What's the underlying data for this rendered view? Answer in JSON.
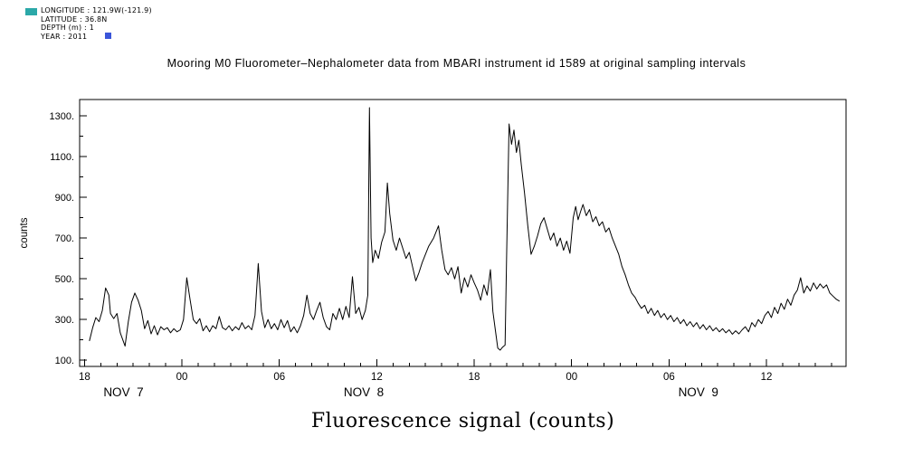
{
  "header": {
    "info_lines": [
      "LONGITUDE : 121.9W(-121.9)",
      "LATITUDE : 36.8N",
      "DEPTH (m) : 1",
      "YEAR : 2011"
    ],
    "markers": [
      {
        "color": "#2ba8a8"
      },
      {
        "color": "#3a55d9"
      }
    ],
    "title": "Mooring M0 Fluorometer–Nephalometer data from MBARI instrument id 1589 at original sampling intervals"
  },
  "chart_data": {
    "type": "line",
    "title": "Mooring M0 Fluorometer–Nephalometer data from MBARI instrument id 1589 at original sampling intervals",
    "xlabel": "Fluorescence signal (counts)",
    "ylabel": "counts",
    "line_color": "#000000",
    "grid": false,
    "legend": false,
    "x_encoding": "hours since 18:00 on NOV 7 2011",
    "xlim": [
      -0.3,
      46.9
    ],
    "ylim": [
      70,
      1380
    ],
    "y_axis": {
      "major": [
        {
          "v": 100,
          "label": "100."
        },
        {
          "v": 300,
          "label": "300."
        },
        {
          "v": 500,
          "label": "500."
        },
        {
          "v": 700,
          "label": "700."
        },
        {
          "v": 900,
          "label": "900."
        },
        {
          "v": 1100,
          "label": "1100."
        },
        {
          "v": 1300,
          "label": "1300."
        }
      ],
      "minor": [
        200,
        400,
        600,
        800,
        1000,
        1200
      ]
    },
    "x_axis": {
      "minor_step_hours": 1,
      "major": [
        {
          "t": 0,
          "label": "18"
        },
        {
          "t": 6,
          "label": "00"
        },
        {
          "t": 12,
          "label": "06"
        },
        {
          "t": 18,
          "label": "12"
        },
        {
          "t": 24,
          "label": "18"
        },
        {
          "t": 30,
          "label": "00"
        },
        {
          "t": 36,
          "label": "06"
        },
        {
          "t": 42,
          "label": "12"
        }
      ],
      "date_labels": [
        {
          "t": 2.4,
          "label": "NOV  7"
        },
        {
          "t": 17.2,
          "label": "NOV  8"
        },
        {
          "t": 37.8,
          "label": "NOV  9"
        }
      ]
    },
    "series": [
      {
        "name": "fluorescence",
        "points": [
          [
            0.3,
            195
          ],
          [
            0.5,
            260
          ],
          [
            0.7,
            310
          ],
          [
            0.9,
            290
          ],
          [
            1.1,
            345
          ],
          [
            1.3,
            455
          ],
          [
            1.5,
            420
          ],
          [
            1.6,
            330
          ],
          [
            1.8,
            305
          ],
          [
            2.0,
            330
          ],
          [
            2.2,
            235
          ],
          [
            2.5,
            170
          ],
          [
            2.7,
            290
          ],
          [
            2.9,
            385
          ],
          [
            3.1,
            430
          ],
          [
            3.3,
            395
          ],
          [
            3.5,
            345
          ],
          [
            3.7,
            255
          ],
          [
            3.9,
            295
          ],
          [
            4.1,
            230
          ],
          [
            4.3,
            270
          ],
          [
            4.5,
            225
          ],
          [
            4.7,
            265
          ],
          [
            4.9,
            250
          ],
          [
            5.1,
            260
          ],
          [
            5.3,
            235
          ],
          [
            5.5,
            255
          ],
          [
            5.7,
            240
          ],
          [
            5.9,
            250
          ],
          [
            6.1,
            300
          ],
          [
            6.3,
            505
          ],
          [
            6.5,
            400
          ],
          [
            6.7,
            300
          ],
          [
            6.9,
            280
          ],
          [
            7.1,
            305
          ],
          [
            7.3,
            245
          ],
          [
            7.5,
            270
          ],
          [
            7.7,
            240
          ],
          [
            7.9,
            270
          ],
          [
            8.1,
            255
          ],
          [
            8.3,
            315
          ],
          [
            8.5,
            260
          ],
          [
            8.7,
            250
          ],
          [
            8.9,
            270
          ],
          [
            9.1,
            245
          ],
          [
            9.3,
            265
          ],
          [
            9.5,
            250
          ],
          [
            9.7,
            285
          ],
          [
            9.9,
            255
          ],
          [
            10.1,
            270
          ],
          [
            10.3,
            250
          ],
          [
            10.5,
            320
          ],
          [
            10.7,
            575
          ],
          [
            10.9,
            340
          ],
          [
            11.1,
            260
          ],
          [
            11.3,
            300
          ],
          [
            11.5,
            255
          ],
          [
            11.7,
            280
          ],
          [
            11.9,
            250
          ],
          [
            12.1,
            300
          ],
          [
            12.3,
            260
          ],
          [
            12.5,
            295
          ],
          [
            12.7,
            240
          ],
          [
            12.9,
            265
          ],
          [
            13.1,
            235
          ],
          [
            13.3,
            270
          ],
          [
            13.5,
            320
          ],
          [
            13.7,
            420
          ],
          [
            13.9,
            330
          ],
          [
            14.1,
            300
          ],
          [
            14.3,
            345
          ],
          [
            14.5,
            385
          ],
          [
            14.7,
            310
          ],
          [
            14.9,
            265
          ],
          [
            15.1,
            250
          ],
          [
            15.3,
            330
          ],
          [
            15.5,
            300
          ],
          [
            15.7,
            355
          ],
          [
            15.9,
            300
          ],
          [
            16.1,
            365
          ],
          [
            16.3,
            310
          ],
          [
            16.5,
            510
          ],
          [
            16.7,
            330
          ],
          [
            16.9,
            360
          ],
          [
            17.1,
            300
          ],
          [
            17.3,
            345
          ],
          [
            17.45,
            420
          ],
          [
            17.55,
            1340
          ],
          [
            17.65,
            700
          ],
          [
            17.75,
            580
          ],
          [
            17.9,
            640
          ],
          [
            18.1,
            600
          ],
          [
            18.3,
            680
          ],
          [
            18.5,
            730
          ],
          [
            18.65,
            970
          ],
          [
            18.8,
            820
          ],
          [
            19.0,
            690
          ],
          [
            19.2,
            640
          ],
          [
            19.4,
            700
          ],
          [
            19.6,
            650
          ],
          [
            19.8,
            600
          ],
          [
            20.0,
            630
          ],
          [
            20.2,
            560
          ],
          [
            20.4,
            490
          ],
          [
            20.6,
            530
          ],
          [
            20.8,
            580
          ],
          [
            21.0,
            620
          ],
          [
            21.2,
            660
          ],
          [
            21.5,
            700
          ],
          [
            21.8,
            760
          ],
          [
            22.0,
            640
          ],
          [
            22.2,
            545
          ],
          [
            22.4,
            520
          ],
          [
            22.6,
            555
          ],
          [
            22.8,
            500
          ],
          [
            23.0,
            560
          ],
          [
            23.2,
            430
          ],
          [
            23.4,
            505
          ],
          [
            23.6,
            460
          ],
          [
            23.8,
            520
          ],
          [
            24.0,
            480
          ],
          [
            24.2,
            445
          ],
          [
            24.4,
            395
          ],
          [
            24.6,
            470
          ],
          [
            24.8,
            420
          ],
          [
            25.0,
            545
          ],
          [
            25.15,
            340
          ],
          [
            25.3,
            250
          ],
          [
            25.45,
            160
          ],
          [
            25.6,
            150
          ],
          [
            25.75,
            165
          ],
          [
            25.9,
            175
          ],
          [
            26.0,
            640
          ],
          [
            26.15,
            1260
          ],
          [
            26.3,
            1160
          ],
          [
            26.45,
            1230
          ],
          [
            26.6,
            1120
          ],
          [
            26.75,
            1180
          ],
          [
            26.9,
            1060
          ],
          [
            27.1,
            920
          ],
          [
            27.3,
            760
          ],
          [
            27.5,
            620
          ],
          [
            27.7,
            660
          ],
          [
            27.9,
            710
          ],
          [
            28.1,
            770
          ],
          [
            28.3,
            800
          ],
          [
            28.5,
            745
          ],
          [
            28.7,
            690
          ],
          [
            28.9,
            725
          ],
          [
            29.1,
            660
          ],
          [
            29.3,
            700
          ],
          [
            29.5,
            640
          ],
          [
            29.7,
            685
          ],
          [
            29.9,
            625
          ],
          [
            30.1,
            800
          ],
          [
            30.25,
            855
          ],
          [
            30.4,
            790
          ],
          [
            30.55,
            830
          ],
          [
            30.7,
            865
          ],
          [
            30.9,
            810
          ],
          [
            31.1,
            840
          ],
          [
            31.3,
            780
          ],
          [
            31.5,
            805
          ],
          [
            31.7,
            760
          ],
          [
            31.9,
            780
          ],
          [
            32.1,
            730
          ],
          [
            32.3,
            750
          ],
          [
            32.5,
            700
          ],
          [
            32.7,
            660
          ],
          [
            32.9,
            620
          ],
          [
            33.1,
            560
          ],
          [
            33.3,
            520
          ],
          [
            33.5,
            470
          ],
          [
            33.7,
            430
          ],
          [
            33.9,
            410
          ],
          [
            34.1,
            380
          ],
          [
            34.3,
            355
          ],
          [
            34.5,
            370
          ],
          [
            34.7,
            330
          ],
          [
            34.9,
            355
          ],
          [
            35.1,
            320
          ],
          [
            35.3,
            345
          ],
          [
            35.5,
            310
          ],
          [
            35.7,
            330
          ],
          [
            35.9,
            300
          ],
          [
            36.1,
            320
          ],
          [
            36.3,
            290
          ],
          [
            36.5,
            310
          ],
          [
            36.7,
            280
          ],
          [
            36.9,
            300
          ],
          [
            37.1,
            270
          ],
          [
            37.3,
            290
          ],
          [
            37.5,
            265
          ],
          [
            37.7,
            285
          ],
          [
            37.9,
            255
          ],
          [
            38.1,
            275
          ],
          [
            38.3,
            250
          ],
          [
            38.5,
            270
          ],
          [
            38.7,
            245
          ],
          [
            38.9,
            260
          ],
          [
            39.1,
            240
          ],
          [
            39.3,
            255
          ],
          [
            39.5,
            235
          ],
          [
            39.7,
            250
          ],
          [
            39.9,
            228
          ],
          [
            40.1,
            245
          ],
          [
            40.3,
            230
          ],
          [
            40.5,
            250
          ],
          [
            40.7,
            265
          ],
          [
            40.9,
            240
          ],
          [
            41.1,
            285
          ],
          [
            41.3,
            265
          ],
          [
            41.5,
            300
          ],
          [
            41.7,
            280
          ],
          [
            41.9,
            320
          ],
          [
            42.1,
            340
          ],
          [
            42.3,
            310
          ],
          [
            42.5,
            360
          ],
          [
            42.7,
            330
          ],
          [
            42.9,
            380
          ],
          [
            43.1,
            350
          ],
          [
            43.3,
            400
          ],
          [
            43.5,
            370
          ],
          [
            43.7,
            420
          ],
          [
            43.9,
            445
          ],
          [
            44.1,
            505
          ],
          [
            44.3,
            430
          ],
          [
            44.5,
            465
          ],
          [
            44.7,
            440
          ],
          [
            44.9,
            480
          ],
          [
            45.1,
            450
          ],
          [
            45.3,
            475
          ],
          [
            45.5,
            455
          ],
          [
            45.7,
            470
          ],
          [
            45.9,
            430
          ],
          [
            46.1,
            415
          ],
          [
            46.3,
            400
          ],
          [
            46.5,
            390
          ]
        ]
      }
    ]
  }
}
